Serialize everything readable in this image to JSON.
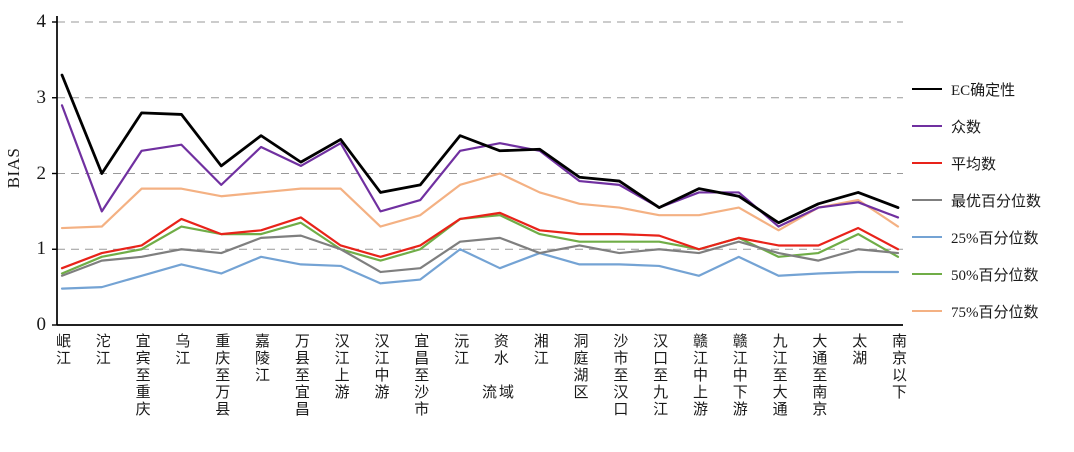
{
  "chart_data": {
    "type": "line",
    "title": "",
    "ylabel": "BIAS",
    "xlabel": "流域",
    "ylim": [
      0,
      4
    ],
    "yticks": [
      0,
      1,
      2,
      3,
      4
    ],
    "grid": "dashed-horizontal",
    "grid_color": "#999999",
    "legend_position": "right",
    "categories": [
      "岷江",
      "沱江",
      "宜宾至重庆",
      "乌江",
      "重庆至万县",
      "嘉陵江",
      "万县至宜昌",
      "汉江上游",
      "汉江中游",
      "宜昌至沙市",
      "沅江",
      "资水",
      "湘江",
      "洞庭湖区",
      "沙市至汉口",
      "汉口至九江",
      "赣江中上游",
      "赣江中下游",
      "九江至大通",
      "大通至南京",
      "太湖",
      "南京以下"
    ],
    "series": [
      {
        "name": "EC确定性",
        "color": "#000000",
        "stroke_width": 2.8,
        "values": [
          3.3,
          2.0,
          2.8,
          2.78,
          2.1,
          2.5,
          2.15,
          2.45,
          1.75,
          1.85,
          2.5,
          2.3,
          2.32,
          1.95,
          1.9,
          1.55,
          1.8,
          1.7,
          1.35,
          1.6,
          1.75,
          1.55
        ]
      },
      {
        "name": "众数",
        "color": "#7030A0",
        "stroke_width": 2.2,
        "values": [
          2.9,
          1.5,
          2.3,
          2.38,
          1.85,
          2.35,
          2.1,
          2.4,
          1.5,
          1.65,
          2.3,
          2.4,
          2.3,
          1.9,
          1.85,
          1.55,
          1.75,
          1.75,
          1.3,
          1.55,
          1.62,
          1.42
        ]
      },
      {
        "name": "平均数",
        "color": "#E8231A",
        "stroke_width": 2.2,
        "values": [
          0.75,
          0.95,
          1.05,
          1.4,
          1.2,
          1.25,
          1.42,
          1.05,
          0.9,
          1.05,
          1.4,
          1.48,
          1.25,
          1.2,
          1.2,
          1.18,
          1.0,
          1.15,
          1.05,
          1.05,
          1.28,
          1.0
        ]
      },
      {
        "name": "最优百分位数",
        "color": "#7F7F7F",
        "stroke_width": 2.2,
        "values": [
          0.65,
          0.85,
          0.9,
          1.0,
          0.95,
          1.15,
          1.18,
          1.0,
          0.7,
          0.75,
          1.1,
          1.15,
          0.95,
          1.05,
          0.95,
          1.0,
          0.95,
          1.1,
          0.95,
          0.85,
          1.0,
          0.95
        ]
      },
      {
        "name": "25%百分位数",
        "color": "#74A3D4",
        "stroke_width": 2.2,
        "values": [
          0.48,
          0.5,
          0.65,
          0.8,
          0.68,
          0.9,
          0.8,
          0.78,
          0.55,
          0.6,
          1.0,
          0.75,
          0.95,
          0.8,
          0.8,
          0.78,
          0.65,
          0.9,
          0.65,
          0.68,
          0.7,
          0.7
        ]
      },
      {
        "name": "50%百分位数",
        "color": "#70AD47",
        "stroke_width": 2.2,
        "values": [
          0.68,
          0.9,
          1.0,
          1.3,
          1.2,
          1.2,
          1.35,
          1.0,
          0.85,
          1.0,
          1.4,
          1.45,
          1.2,
          1.1,
          1.1,
          1.1,
          1.0,
          1.15,
          0.9,
          0.95,
          1.2,
          0.9
        ]
      },
      {
        "name": "75%百分位数",
        "color": "#F4B183",
        "stroke_width": 2.2,
        "values": [
          1.28,
          1.3,
          1.8,
          1.8,
          1.7,
          1.75,
          1.8,
          1.8,
          1.3,
          1.45,
          1.85,
          2.0,
          1.75,
          1.6,
          1.55,
          1.45,
          1.45,
          1.55,
          1.25,
          1.55,
          1.65,
          1.3
        ]
      }
    ]
  }
}
